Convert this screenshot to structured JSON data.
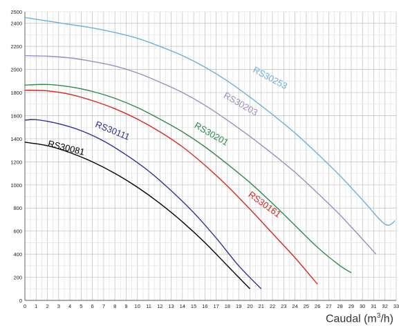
{
  "chart_data": {
    "type": "line",
    "xlabel_main": "Caudal (m",
    "xlabel_sup": "3",
    "xlabel_tail": "/h)",
    "ylabel": "",
    "xlim": [
      0,
      33
    ],
    "ylim": [
      0,
      2500
    ],
    "x_ticks": [
      0,
      1,
      2,
      3,
      4,
      5,
      6,
      7,
      8,
      9,
      10,
      11,
      12,
      13,
      14,
      15,
      16,
      17,
      18,
      19,
      20,
      21,
      22,
      23,
      24,
      25,
      26,
      27,
      28,
      29,
      30,
      31,
      32,
      33
    ],
    "y_ticks": [
      0,
      200,
      400,
      600,
      800,
      1000,
      1200,
      1400,
      1600,
      1800,
      2000,
      2200,
      2400,
      2500
    ],
    "grid": true,
    "series": [
      {
        "name": "RS30081",
        "color": "#000000",
        "x": [
          0,
          2,
          4,
          6,
          8,
          10,
          12,
          14,
          16,
          18,
          20
        ],
        "y": [
          1370,
          1340,
          1280,
          1200,
          1100,
          980,
          840,
          680,
          500,
          300,
          100
        ],
        "label": {
          "x": 2.0,
          "y": 1335,
          "rotate": 14,
          "color": "#000000"
        }
      },
      {
        "name": "RS30111",
        "color": "#2b2f9c",
        "x": [
          0,
          1,
          3,
          5,
          7,
          9,
          11,
          13,
          15,
          17,
          19,
          21
        ],
        "y": [
          1560,
          1565,
          1530,
          1470,
          1380,
          1260,
          1120,
          950,
          760,
          540,
          300,
          100
        ],
        "label": {
          "x": 6.2,
          "y": 1505,
          "rotate": 22,
          "color": "#2b2f9c"
        }
      },
      {
        "name": "RS30161",
        "color": "#d9261c",
        "x": [
          0,
          2,
          4,
          6,
          8,
          10,
          12,
          14,
          16,
          18,
          20,
          22,
          24,
          26
        ],
        "y": [
          1820,
          1815,
          1785,
          1730,
          1660,
          1570,
          1460,
          1330,
          1170,
          990,
          790,
          580,
          370,
          140
        ],
        "label": {
          "x": 19.8,
          "y": 905,
          "rotate": 36,
          "color": "#d9261c"
        }
      },
      {
        "name": "RS30201",
        "color": "#2f8a4a",
        "x": [
          0,
          2,
          4,
          6,
          8,
          10,
          12,
          14,
          16,
          18,
          20,
          22,
          24,
          26,
          28,
          29
        ],
        "y": [
          1865,
          1870,
          1850,
          1810,
          1750,
          1670,
          1570,
          1460,
          1330,
          1180,
          1020,
          840,
          650,
          460,
          300,
          240
        ],
        "label": {
          "x": 15.0,
          "y": 1500,
          "rotate": 30,
          "color": "#2f8a4a"
        }
      },
      {
        "name": "RS30203",
        "color": "#9b8cc4",
        "x": [
          0,
          2,
          4,
          6,
          8,
          10,
          12,
          14,
          16,
          18,
          20,
          22,
          24,
          26,
          28,
          30,
          31.2
        ],
        "y": [
          2120,
          2115,
          2100,
          2070,
          2030,
          1970,
          1890,
          1800,
          1690,
          1560,
          1420,
          1270,
          1110,
          930,
          740,
          530,
          400
        ],
        "label": {
          "x": 17.6,
          "y": 1760,
          "rotate": 30,
          "color": "#9b8cc4"
        }
      },
      {
        "name": "RS30253",
        "color": "#69b1dc",
        "x": [
          0,
          2,
          4,
          6,
          8,
          10,
          12,
          14,
          16,
          18,
          20,
          22,
          24,
          26,
          28,
          30,
          32,
          32.9
        ],
        "y": [
          2450,
          2420,
          2390,
          2360,
          2320,
          2270,
          2200,
          2120,
          2020,
          1900,
          1760,
          1610,
          1450,
          1270,
          1080,
          870,
          660,
          690
        ],
        "label": {
          "x": 20.2,
          "y": 1980,
          "rotate": 28,
          "color": "#69b1dc"
        }
      }
    ]
  }
}
